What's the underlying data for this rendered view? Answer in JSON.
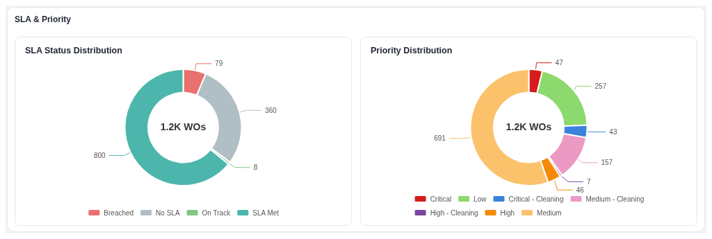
{
  "chart_data": [
    {
      "type": "donut",
      "title": "SLA Status Distribution",
      "annotations": [
        "SLA & Priority",
        "1.2K WOs"
      ],
      "categories": [
        "Breached",
        "No SLA",
        "On Track",
        "SLA Met"
      ],
      "values": [
        79,
        360,
        8,
        800
      ],
      "colors": [
        "#e8716f",
        "#b0bec5",
        "#81c784",
        "#4db6ac"
      ],
      "data_labels": true,
      "legend": "bottom"
    },
    {
      "type": "donut",
      "title": "Priority Distribution",
      "annotations": [
        "1.2K WOs"
      ],
      "categories": [
        "Critical",
        "Low",
        "Critical - Cleaning",
        "Medium - Cleaning",
        "High - Cleaning",
        "High",
        "Medium"
      ],
      "values": [
        47,
        257,
        43,
        157,
        7,
        46,
        691
      ],
      "colors": [
        "#d81b1b",
        "#8cd96e",
        "#3b82dc",
        "#ec9ac4",
        "#7b45a6",
        "#f58a07",
        "#fbc26b"
      ],
      "data_labels": true,
      "legend": "bottom"
    }
  ]
}
